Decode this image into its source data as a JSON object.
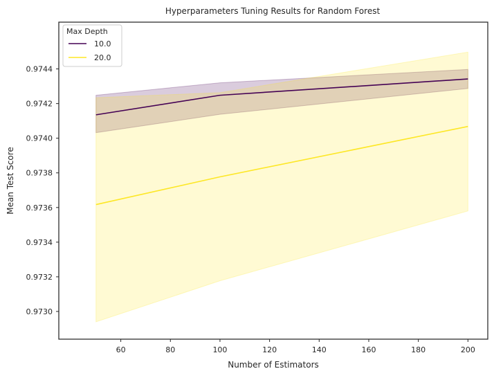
{
  "chart_data": {
    "type": "line",
    "title": "Hyperparameters Tuning Results for Random Forest",
    "xlabel": "Number of Estimators",
    "ylabel": "Mean Test Score",
    "xlim": [
      35,
      208
    ],
    "ylim": [
      0.97284,
      0.97467
    ],
    "x_ticks": [
      60,
      80,
      100,
      120,
      140,
      160,
      180,
      200
    ],
    "x_tick_labels": [
      "60",
      "80",
      "100",
      "120",
      "140",
      "160",
      "180",
      "200"
    ],
    "y_ticks": [
      0.973,
      0.9732,
      0.9734,
      0.9736,
      0.9738,
      0.974,
      0.9742,
      0.9744
    ],
    "y_tick_labels": [
      "0.9730",
      "0.9732",
      "0.9734",
      "0.9736",
      "0.9738",
      "0.9740",
      "0.9742",
      "0.9744"
    ],
    "grid": false,
    "legend": {
      "title": "Max Depth",
      "placement": "top-left"
    },
    "x": [
      50,
      100,
      200
    ],
    "series": [
      {
        "name": "10.0",
        "color": "#440154",
        "values": [
          0.974135,
          0.974248,
          0.974342
        ],
        "lower": [
          0.974032,
          0.974138,
          0.974287
        ],
        "upper": [
          0.974248,
          0.97432,
          0.974397
        ]
      },
      {
        "name": "20.0",
        "color": "#fde725",
        "values": [
          0.973617,
          0.973777,
          0.974068
        ],
        "lower": [
          0.97294,
          0.973177,
          0.97358
        ],
        "upper": [
          0.974234,
          0.974263,
          0.974497
        ]
      }
    ]
  }
}
